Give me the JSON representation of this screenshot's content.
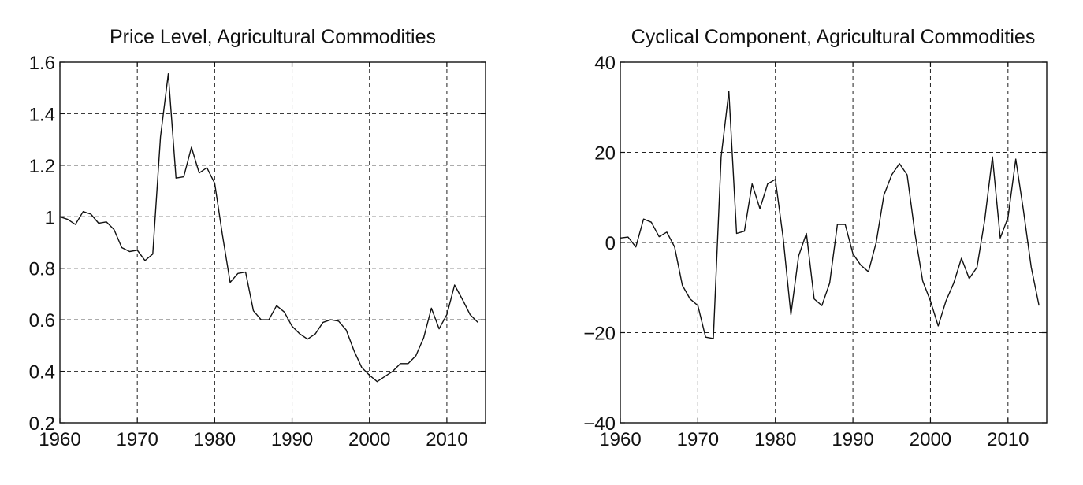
{
  "chart_data": [
    {
      "type": "line",
      "title": "Price Level, Agricultural Commodities",
      "xlabel": "",
      "ylabel": "",
      "xlim": [
        1960,
        2015
      ],
      "ylim": [
        0.2,
        1.6
      ],
      "xticks": [
        1960,
        1970,
        1980,
        1990,
        2000,
        2010
      ],
      "yticks": [
        0.2,
        0.4,
        0.6,
        0.8,
        1.0,
        1.2,
        1.4,
        1.6
      ],
      "ytick_labels": [
        "0.2",
        "0.4",
        "0.6",
        "0.8",
        "1",
        "1.2",
        "1.4",
        "1.6"
      ],
      "grid": true,
      "series": [
        {
          "x": [
            1960,
            1961,
            1962,
            1963,
            1964,
            1965,
            1966,
            1967,
            1968,
            1969,
            1970,
            1971,
            1972,
            1973,
            1974,
            1975,
            1976,
            1977,
            1978,
            1979,
            1980,
            1981,
            1982,
            1983,
            1984,
            1985,
            1986,
            1987,
            1988,
            1989,
            1990,
            1991,
            1992,
            1993,
            1994,
            1995,
            1996,
            1997,
            1998,
            1999,
            2000,
            2001,
            2002,
            2003,
            2004,
            2005,
            2006,
            2007,
            2008,
            2009,
            2010,
            2011,
            2012,
            2013,
            2014
          ],
          "y": [
            1.0,
            0.99,
            0.97,
            1.02,
            1.01,
            0.975,
            0.98,
            0.95,
            0.88,
            0.865,
            0.87,
            0.83,
            0.855,
            1.31,
            1.555,
            1.15,
            1.155,
            1.27,
            1.17,
            1.19,
            1.13,
            0.93,
            0.745,
            0.78,
            0.785,
            0.635,
            0.6,
            0.6,
            0.655,
            0.63,
            0.575,
            0.545,
            0.525,
            0.545,
            0.59,
            0.6,
            0.595,
            0.56,
            0.48,
            0.415,
            0.385,
            0.36,
            0.38,
            0.4,
            0.43,
            0.43,
            0.46,
            0.53,
            0.645,
            0.565,
            0.62,
            0.735,
            0.68,
            0.62,
            0.59
          ]
        }
      ]
    },
    {
      "type": "line",
      "title": "Cyclical Component, Agricultural Commodities",
      "xlabel": "",
      "ylabel": "",
      "xlim": [
        1960,
        2015
      ],
      "ylim": [
        -40,
        40
      ],
      "xticks": [
        1960,
        1970,
        1980,
        1990,
        2000,
        2010
      ],
      "yticks": [
        -40,
        -20,
        0,
        20,
        40
      ],
      "ytick_labels": [
        "−40",
        "−20",
        "0",
        "20",
        "40"
      ],
      "grid": true,
      "series": [
        {
          "x": [
            1960,
            1961,
            1962,
            1963,
            1964,
            1965,
            1966,
            1967,
            1968,
            1969,
            1970,
            1971,
            1972,
            1973,
            1974,
            1975,
            1976,
            1977,
            1978,
            1979,
            1980,
            1981,
            1982,
            1983,
            1984,
            1985,
            1986,
            1987,
            1988,
            1989,
            1990,
            1991,
            1992,
            1993,
            1994,
            1995,
            1996,
            1997,
            1998,
            1999,
            2000,
            2001,
            2002,
            2003,
            2004,
            2005,
            2006,
            2007,
            2008,
            2009,
            2010,
            2011,
            2012,
            2013,
            2014
          ],
          "y": [
            1.0,
            1.2,
            -1.0,
            5.2,
            4.5,
            1.3,
            2.3,
            -1.0,
            -9.5,
            -12.5,
            -14.0,
            -21.0,
            -21.3,
            19.0,
            33.5,
            2.0,
            2.5,
            13.0,
            7.5,
            13.0,
            14.0,
            1.0,
            -16.0,
            -3.0,
            2.0,
            -12.5,
            -14.0,
            -9.0,
            4.0,
            4.0,
            -2.5,
            -5.0,
            -6.5,
            0.0,
            10.5,
            15.0,
            17.5,
            15.0,
            2.0,
            -8.5,
            -13.0,
            -18.5,
            -13.0,
            -9.0,
            -3.5,
            -8.0,
            -5.5,
            5.0,
            19.0,
            1.0,
            5.5,
            18.5,
            7.0,
            -5.5,
            -14.0
          ]
        }
      ]
    }
  ]
}
